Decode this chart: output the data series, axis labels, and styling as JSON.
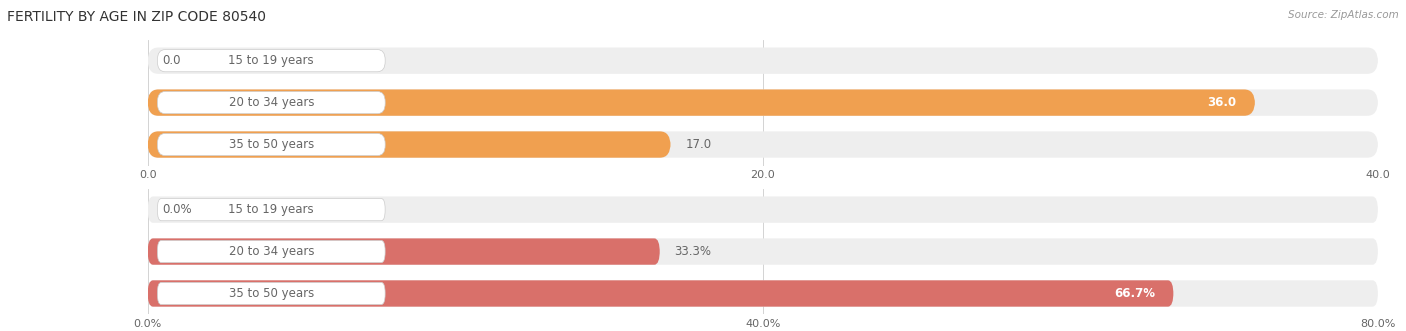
{
  "title": "FERTILITY BY AGE IN ZIP CODE 80540",
  "source": "Source: ZipAtlas.com",
  "top_chart": {
    "categories": [
      "15 to 19 years",
      "20 to 34 years",
      "35 to 50 years"
    ],
    "values": [
      0.0,
      36.0,
      17.0
    ],
    "xlim": [
      0,
      40
    ],
    "xticks": [
      0.0,
      20.0,
      40.0
    ],
    "xtick_labels": [
      "0.0",
      "20.0",
      "40.0"
    ],
    "bar_color": "#F0A050",
    "bar_bg_color": "#EEEEEE",
    "value_labels": [
      "0.0",
      "36.0",
      "17.0"
    ],
    "value_inside": [
      false,
      true,
      false
    ]
  },
  "bottom_chart": {
    "categories": [
      "15 to 19 years",
      "20 to 34 years",
      "35 to 50 years"
    ],
    "values": [
      0.0,
      33.3,
      66.7
    ],
    "xlim": [
      0,
      80
    ],
    "xticks": [
      0.0,
      40.0,
      80.0
    ],
    "xtick_labels": [
      "0.0%",
      "40.0%",
      "80.0%"
    ],
    "bar_color": "#D9706A",
    "bar_bg_color": "#EEEEEE",
    "value_labels": [
      "0.0%",
      "33.3%",
      "66.7%"
    ],
    "value_inside": [
      false,
      false,
      true
    ]
  },
  "label_color": "#666666",
  "title_color": "#333333",
  "source_color": "#999999",
  "bar_height": 0.62,
  "label_fontsize": 8.5,
  "title_fontsize": 10,
  "value_fontsize": 8.5,
  "tick_fontsize": 8
}
